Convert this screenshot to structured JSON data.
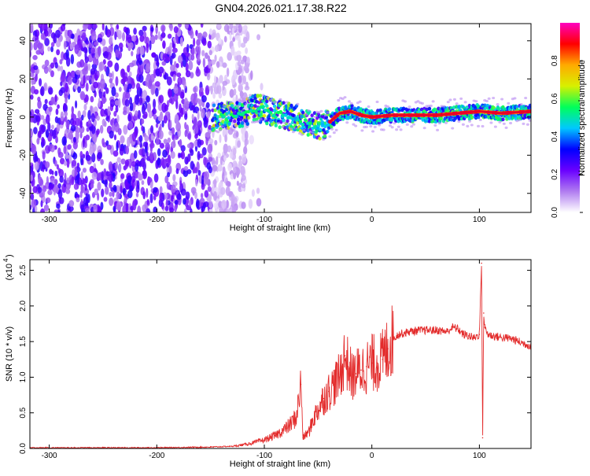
{
  "title": "GN04.2026.021.17.38.R22",
  "chart_data": [
    {
      "type": "heatmap",
      "xlabel": "Height of straight line (km)",
      "ylabel": "Frequency (Hz)",
      "xlim": [
        -318,
        148
      ],
      "ylim": [
        -50,
        49
      ],
      "xticks": [
        -300,
        -200,
        -100,
        0,
        100
      ],
      "xtick_labels": [
        "-300",
        "-200",
        "-100",
        "0",
        "100"
      ],
      "yticks": [
        -40,
        -20,
        0,
        20,
        40
      ],
      "ytick_labels": [
        "-40",
        "-20",
        "0",
        "20",
        "40"
      ],
      "colorbar": {
        "label": "Normalized spectral amplitude",
        "range": [
          0,
          1
        ],
        "ticks": [
          0.0,
          0.2,
          0.4,
          0.6,
          0.8
        ],
        "tick_labels": [
          "0.0",
          "0.2",
          "0.4",
          "0.6",
          "0.8"
        ],
        "colors": [
          "#ffffff",
          "#b07cf0",
          "#6a00ff",
          "#0000ff",
          "#00c8ff",
          "#00ff5a",
          "#d8f000",
          "#ffaa00",
          "#ff0000",
          "#ff00c0"
        ]
      },
      "ridge": {
        "x": [
          -145,
          -130,
          -120,
          -110,
          -100,
          -90,
          -80,
          -70,
          -60,
          -50,
          -40,
          -30,
          -20,
          -10,
          0,
          20,
          40,
          60,
          80,
          100,
          120,
          148
        ],
        "y": [
          0,
          1,
          2,
          5,
          4,
          2,
          1,
          -1,
          -3,
          -5,
          -3,
          2,
          3,
          1,
          0,
          1,
          1,
          1,
          2,
          3,
          2,
          3
        ]
      },
      "noise_region_x": [
        -318,
        -115
      ],
      "grid": false
    },
    {
      "type": "line",
      "xlabel": "Height of straight line (km)",
      "ylabel": "SNR (10 * v/v)",
      "y_multiplier_label": "(x10",
      "y_multiplier_exp": "4",
      "xlim": [
        -318,
        148
      ],
      "ylim": [
        0,
        2.65
      ],
      "xticks": [
        -300,
        -200,
        -100,
        0,
        100
      ],
      "xtick_labels": [
        "-300",
        "-200",
        "-100",
        "0",
        "100"
      ],
      "yticks": [
        0.0,
        0.5,
        1.0,
        1.5,
        2.0,
        2.5
      ],
      "ytick_labels": [
        "0.0",
        "0.5",
        "1.0",
        "1.5",
        "2.0",
        "2.5"
      ],
      "series": [
        {
          "color": "#e32c2c",
          "x": [
            -318,
            -250,
            -200,
            -150,
            -130,
            -120,
            -110,
            -100,
            -90,
            -80,
            -75,
            -70,
            -66,
            -64,
            -62,
            -58,
            -55,
            -50,
            -45,
            -40,
            -35,
            -30,
            -25,
            -22,
            -18,
            -15,
            -10,
            -5,
            0,
            5,
            10,
            15,
            20,
            25,
            30,
            35,
            40,
            50,
            60,
            70,
            75,
            80,
            85,
            90,
            95,
            100,
            102,
            103,
            104,
            105,
            108,
            112,
            120,
            130,
            140,
            148
          ],
          "y": [
            0.01,
            0.01,
            0.01,
            0.02,
            0.03,
            0.05,
            0.08,
            0.12,
            0.18,
            0.28,
            0.35,
            0.45,
            0.9,
            0.15,
            0.18,
            0.25,
            0.4,
            0.55,
            0.7,
            0.8,
            0.9,
            1.0,
            1.3,
            1.15,
            1.0,
            1.05,
            1.1,
            1.15,
            1.2,
            1.2,
            1.25,
            1.4,
            1.55,
            1.6,
            1.62,
            1.64,
            1.65,
            1.66,
            1.66,
            1.64,
            1.7,
            1.68,
            1.6,
            1.58,
            1.55,
            1.6,
            2.6,
            0.15,
            1.9,
            1.7,
            1.6,
            1.58,
            1.56,
            1.54,
            1.48,
            1.44
          ]
        }
      ],
      "grid": false
    }
  ]
}
